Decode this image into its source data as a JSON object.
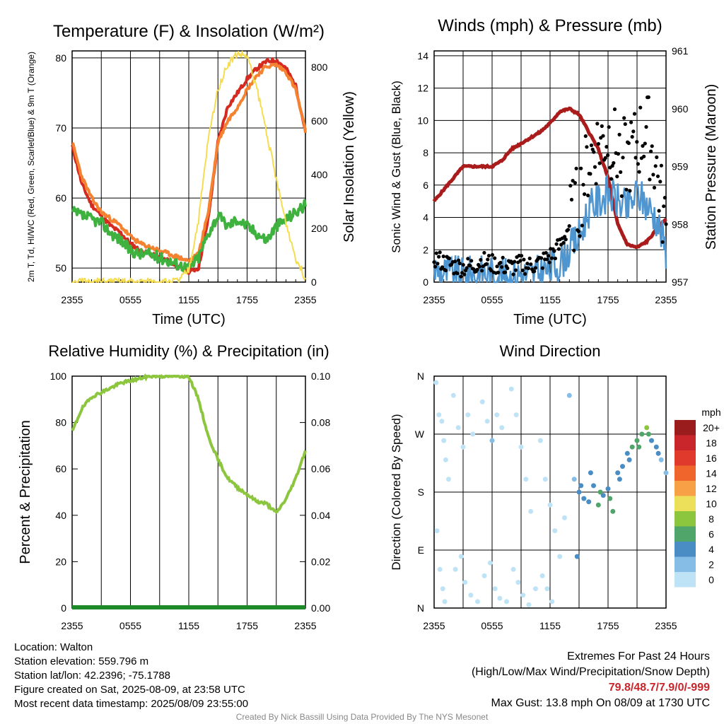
{
  "colors": {
    "red": "#d42a20",
    "green": "#3fb13f",
    "orange": "#f58231",
    "yellow": "#f5dc50",
    "blue": "#4f96d0",
    "black": "#000000",
    "maroon": "#aa1c1c",
    "rh": "#8cc63e",
    "precip": "#1f8a2a"
  },
  "chart_data": [
    {
      "type": "line",
      "title": "Temperature (F) & Insolation (W/m²)",
      "xlabel": "Time (UTC)",
      "ylabel": "2m T, Td, HI/WC (Red, Green, Scarlet/Blue) & 9m T (Orange)",
      "y2label": "Solar Insolation (Yellow)",
      "x_ticks": [
        "2355",
        "0555",
        "1155",
        "1755",
        "2355"
      ],
      "ylim": [
        48,
        81
      ],
      "y_ticks": [
        50,
        60,
        70,
        80
      ],
      "y2lim": [
        0,
        860
      ],
      "y2_ticks": [
        0,
        200,
        400,
        600,
        800
      ],
      "x_hours": [
        0,
        1,
        2,
        3,
        4,
        5,
        6,
        7,
        8,
        9,
        10,
        11,
        12,
        13,
        14,
        15,
        16,
        17,
        18,
        19,
        20,
        21,
        22,
        23,
        24
      ],
      "series": [
        {
          "color": "red",
          "axis": "left",
          "values": [
            67.5,
            62,
            59,
            57.5,
            56,
            55,
            53.5,
            52.5,
            52,
            51.5,
            51,
            50,
            49.5,
            50,
            57,
            68,
            73,
            75,
            77,
            78.5,
            79.5,
            79.7,
            78.5,
            76,
            69.5
          ]
        },
        {
          "color": "orange",
          "axis": "left",
          "values": [
            68,
            63,
            60,
            58,
            57,
            56,
            54.5,
            53.5,
            53,
            52.5,
            52,
            51.5,
            51,
            52,
            58,
            68,
            71,
            73,
            75.5,
            77.5,
            78.8,
            79,
            78,
            75.5,
            69.5
          ]
        },
        {
          "color": "green",
          "axis": "left",
          "values": [
            58,
            57.5,
            57,
            56.5,
            55,
            54,
            52.5,
            52,
            52,
            51.5,
            51,
            50.5,
            50,
            51.5,
            55,
            57.5,
            56,
            57,
            56,
            55,
            54,
            56,
            57,
            58,
            59
          ]
        },
        {
          "color": "yellow",
          "axis": "right",
          "values": [
            0,
            0,
            0,
            0,
            0,
            0,
            0,
            0,
            0,
            0,
            0,
            5,
            45,
            230,
            530,
            720,
            810,
            850,
            840,
            720,
            560,
            380,
            220,
            90,
            15
          ]
        }
      ]
    },
    {
      "type": "line",
      "title": "Winds (mph) & Pressure (mb)",
      "xlabel": "Time (UTC)",
      "ylabel": "Sonic Wind & Gust (Blue, Black)",
      "y2label": "Station Pressure (Maroon)",
      "x_ticks": [
        "2355",
        "0555",
        "1155",
        "1755",
        "2355"
      ],
      "ylim": [
        0,
        14.3
      ],
      "y_ticks": [
        0,
        2,
        4,
        6,
        8,
        10,
        12,
        14
      ],
      "y2lim": [
        957,
        961
      ],
      "y2_ticks": [
        957,
        958,
        959,
        960,
        961
      ],
      "x_hours": [
        0,
        1,
        2,
        3,
        4,
        5,
        6,
        7,
        8,
        9,
        10,
        11,
        12,
        13,
        14,
        15,
        16,
        17,
        18,
        19,
        20,
        21,
        22,
        23,
        24
      ],
      "series": [
        {
          "color": "maroon",
          "axis": "right",
          "values": [
            958.4,
            958.6,
            958.8,
            959.0,
            959.0,
            959.0,
            959.0,
            959.1,
            959.3,
            959.4,
            959.5,
            959.6,
            959.75,
            959.95,
            960.0,
            959.9,
            959.6,
            959.3,
            958.8,
            958.0,
            957.65,
            957.6,
            957.7,
            957.9,
            958.1
          ]
        },
        {
          "color": "blue",
          "axis": "left",
          "values": [
            0.8,
            0.6,
            0.5,
            0.4,
            0.5,
            0.6,
            0.5,
            0.4,
            0.3,
            0.5,
            0.4,
            0.6,
            0.8,
            1.2,
            2.0,
            2.8,
            4.5,
            5.0,
            5.5,
            5.0,
            4.5,
            5.5,
            4.8,
            4.0,
            2.0
          ]
        },
        {
          "color": "black",
          "axis": "left",
          "type": "scatter",
          "values": [
            1.5,
            1.2,
            1.0,
            0.9,
            1.0,
            1.3,
            1.1,
            1.0,
            0.9,
            1.1,
            1.0,
            1.2,
            1.6,
            2.2,
            3.5,
            5.0,
            7.5,
            8.5,
            9.0,
            8.0,
            7.5,
            8.5,
            9.5,
            7.0,
            3.0
          ]
        }
      ]
    },
    {
      "type": "line",
      "title": "Relative Humidity (%) & Precipitation (in)",
      "ylabel": "Percent & Precipitation",
      "x_ticks": [
        "2355",
        "0555",
        "1155",
        "1755",
        "2355"
      ],
      "ylim": [
        0,
        100
      ],
      "y_ticks": [
        0,
        20,
        40,
        60,
        80,
        100
      ],
      "y2lim": [
        0,
        0.1
      ],
      "y2_ticks": [
        "0.00",
        "0.02",
        "0.04",
        "0.06",
        "0.08",
        "0.10"
      ],
      "x_hours": [
        0,
        1,
        2,
        3,
        4,
        5,
        6,
        7,
        8,
        9,
        10,
        11,
        12,
        13,
        14,
        15,
        16,
        17,
        18,
        19,
        20,
        21,
        22,
        23,
        24
      ],
      "series": [
        {
          "color": "rh",
          "axis": "left",
          "values": [
            76,
            86,
            91,
            93,
            95,
            97,
            98,
            99,
            100,
            100,
            100,
            100,
            100,
            90,
            74,
            64,
            56,
            52,
            49,
            46,
            45,
            41,
            47,
            56,
            68
          ]
        },
        {
          "color": "precip",
          "axis": "right",
          "values": [
            0,
            0,
            0,
            0,
            0,
            0,
            0,
            0,
            0,
            0,
            0,
            0,
            0,
            0,
            0,
            0,
            0,
            0,
            0,
            0,
            0,
            0,
            0,
            0,
            0
          ]
        }
      ]
    },
    {
      "type": "scatter",
      "title": "Wind Direction",
      "ylabel": "Direction (Colored By Speed)",
      "x_ticks": [
        "2355",
        "0555",
        "1155",
        "1755",
        "2355"
      ],
      "y_ticks": [
        "N",
        "E",
        "S",
        "W",
        "N"
      ],
      "ylim": [
        0,
        360
      ],
      "legend": {
        "title": "mph",
        "labels": [
          "20+",
          "18",
          "16",
          "14",
          "12",
          "10",
          "8",
          "6",
          "4",
          "2",
          "0"
        ],
        "colors": [
          "#9b1c1c",
          "#c8262a",
          "#e03a2c",
          "#f0652b",
          "#f7a046",
          "#ece05a",
          "#8cc63e",
          "#4fa56a",
          "#4a8dc5",
          "#86bde6",
          "#bfe3f6"
        ]
      },
      "points": [
        [
          0.2,
          350,
          0
        ],
        [
          0.5,
          300,
          0
        ],
        [
          0.8,
          290,
          0
        ],
        [
          1.0,
          260,
          0
        ],
        [
          1.2,
          230,
          0
        ],
        [
          1.5,
          200,
          0
        ],
        [
          0.3,
          120,
          0
        ],
        [
          0.6,
          60,
          0
        ],
        [
          0.9,
          30,
          0
        ],
        [
          1.1,
          10,
          0
        ],
        [
          2.0,
          330,
          0
        ],
        [
          2.5,
          280,
          0
        ],
        [
          3.0,
          250,
          0
        ],
        [
          3.5,
          300,
          0
        ],
        [
          4.0,
          270,
          0
        ],
        [
          2.2,
          60,
          0
        ],
        [
          2.8,
          80,
          0
        ],
        [
          3.2,
          40,
          0
        ],
        [
          3.8,
          20,
          0
        ],
        [
          4.5,
          10,
          0
        ],
        [
          5.0,
          320,
          0
        ],
        [
          5.5,
          290,
          0
        ],
        [
          6.0,
          260,
          1
        ],
        [
          6.5,
          300,
          0
        ],
        [
          7.0,
          280,
          0
        ],
        [
          5.2,
          50,
          0
        ],
        [
          5.8,
          70,
          0
        ],
        [
          6.3,
          30,
          0
        ],
        [
          6.8,
          15,
          0
        ],
        [
          7.5,
          10,
          0
        ],
        [
          8.0,
          340,
          0
        ],
        [
          8.5,
          300,
          0
        ],
        [
          9.0,
          250,
          0
        ],
        [
          9.5,
          200,
          0
        ],
        [
          10.0,
          150,
          0
        ],
        [
          8.2,
          60,
          0
        ],
        [
          8.7,
          40,
          0
        ],
        [
          9.2,
          20,
          0
        ],
        [
          9.8,
          5,
          0
        ],
        [
          10.5,
          30,
          0
        ],
        [
          11.0,
          260,
          0
        ],
        [
          11.5,
          200,
          0
        ],
        [
          12.0,
          160,
          0
        ],
        [
          12.5,
          120,
          0
        ],
        [
          13.0,
          80,
          0
        ],
        [
          11.2,
          50,
          0
        ],
        [
          11.7,
          30,
          0
        ],
        [
          12.2,
          10,
          0
        ],
        [
          13.5,
          140,
          0
        ],
        [
          14.0,
          330,
          1
        ],
        [
          14.5,
          200,
          1
        ],
        [
          15.0,
          180,
          2
        ],
        [
          15.5,
          170,
          2
        ],
        [
          16.0,
          165,
          2
        ],
        [
          16.5,
          190,
          2
        ],
        [
          17.0,
          160,
          3
        ],
        [
          17.5,
          175,
          2
        ],
        [
          18.0,
          185,
          2
        ],
        [
          18.5,
          150,
          3
        ],
        [
          19.0,
          210,
          2
        ],
        [
          19.5,
          220,
          2
        ],
        [
          20.0,
          240,
          2
        ],
        [
          20.5,
          250,
          3
        ],
        [
          21.0,
          260,
          3
        ],
        [
          21.5,
          270,
          3
        ],
        [
          22.0,
          280,
          4
        ],
        [
          22.5,
          260,
          2
        ],
        [
          23.0,
          250,
          2
        ],
        [
          23.5,
          230,
          1
        ],
        [
          24.0,
          210,
          1
        ],
        [
          15.2,
          190,
          2
        ],
        [
          16.2,
          210,
          2
        ],
        [
          17.2,
          180,
          3
        ],
        [
          18.2,
          170,
          3
        ],
        [
          19.2,
          200,
          2
        ],
        [
          20.2,
          230,
          2
        ],
        [
          21.2,
          250,
          3
        ],
        [
          22.2,
          270,
          3
        ],
        [
          23.2,
          240,
          2
        ],
        [
          14.8,
          80,
          2
        ]
      ]
    }
  ],
  "footer": {
    "location": "Location: Walton",
    "elevation": "Station elevation: 559.796 m",
    "latlon": "Station lat/lon: 42.2396; -75.1788",
    "created": "Figure created on Sat, 2025-08-09, at 23:58 UTC",
    "recent": "Most recent data timestamp: 2025/08/09 23:55:00",
    "extremes_title": "Extremes For Past 24 Hours",
    "extremes_sub": "(High/Low/Max Wind/Precipitation/Snow Depth)",
    "extremes_values": "79.8/48.7/7.9/0/-999",
    "max_gust": "Max Gust: 13.8 mph On 08/09 at 1730 UTC",
    "credit": "Created By Nick Bassill Using Data Provided By The NYS Mesonet"
  }
}
